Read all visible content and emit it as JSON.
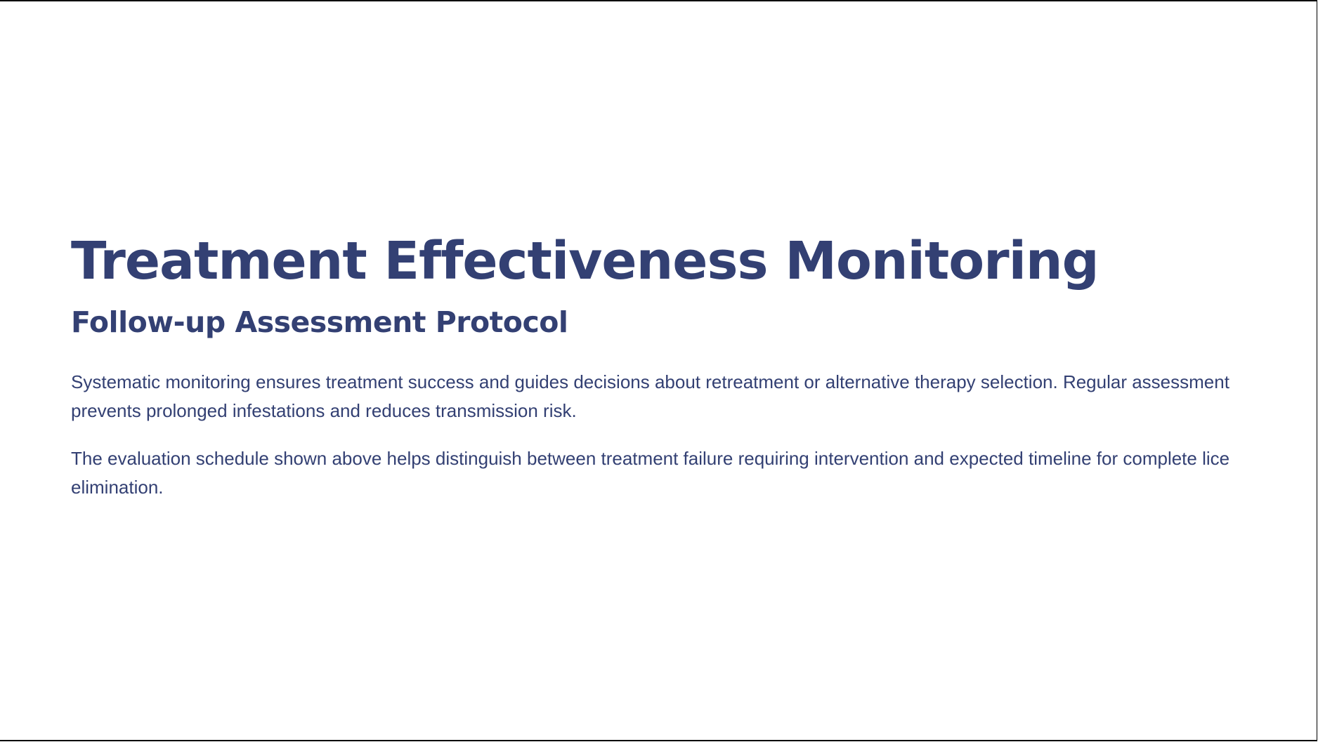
{
  "slide": {
    "title": "Treatment Effectiveness Monitoring",
    "subtitle": "Follow-up Assessment Protocol",
    "paragraphs": [
      "Systematic monitoring ensures treatment success and guides decisions about retreatment or alternative therapy selection. Regular assessment prevents prolonged infestations and reduces transmission risk.",
      "The evaluation schedule shown above helps distinguish between treatment failure requiring intervention and expected timeline for complete lice elimination."
    ]
  },
  "colors": {
    "text": "#334073",
    "background": "#ffffff"
  }
}
